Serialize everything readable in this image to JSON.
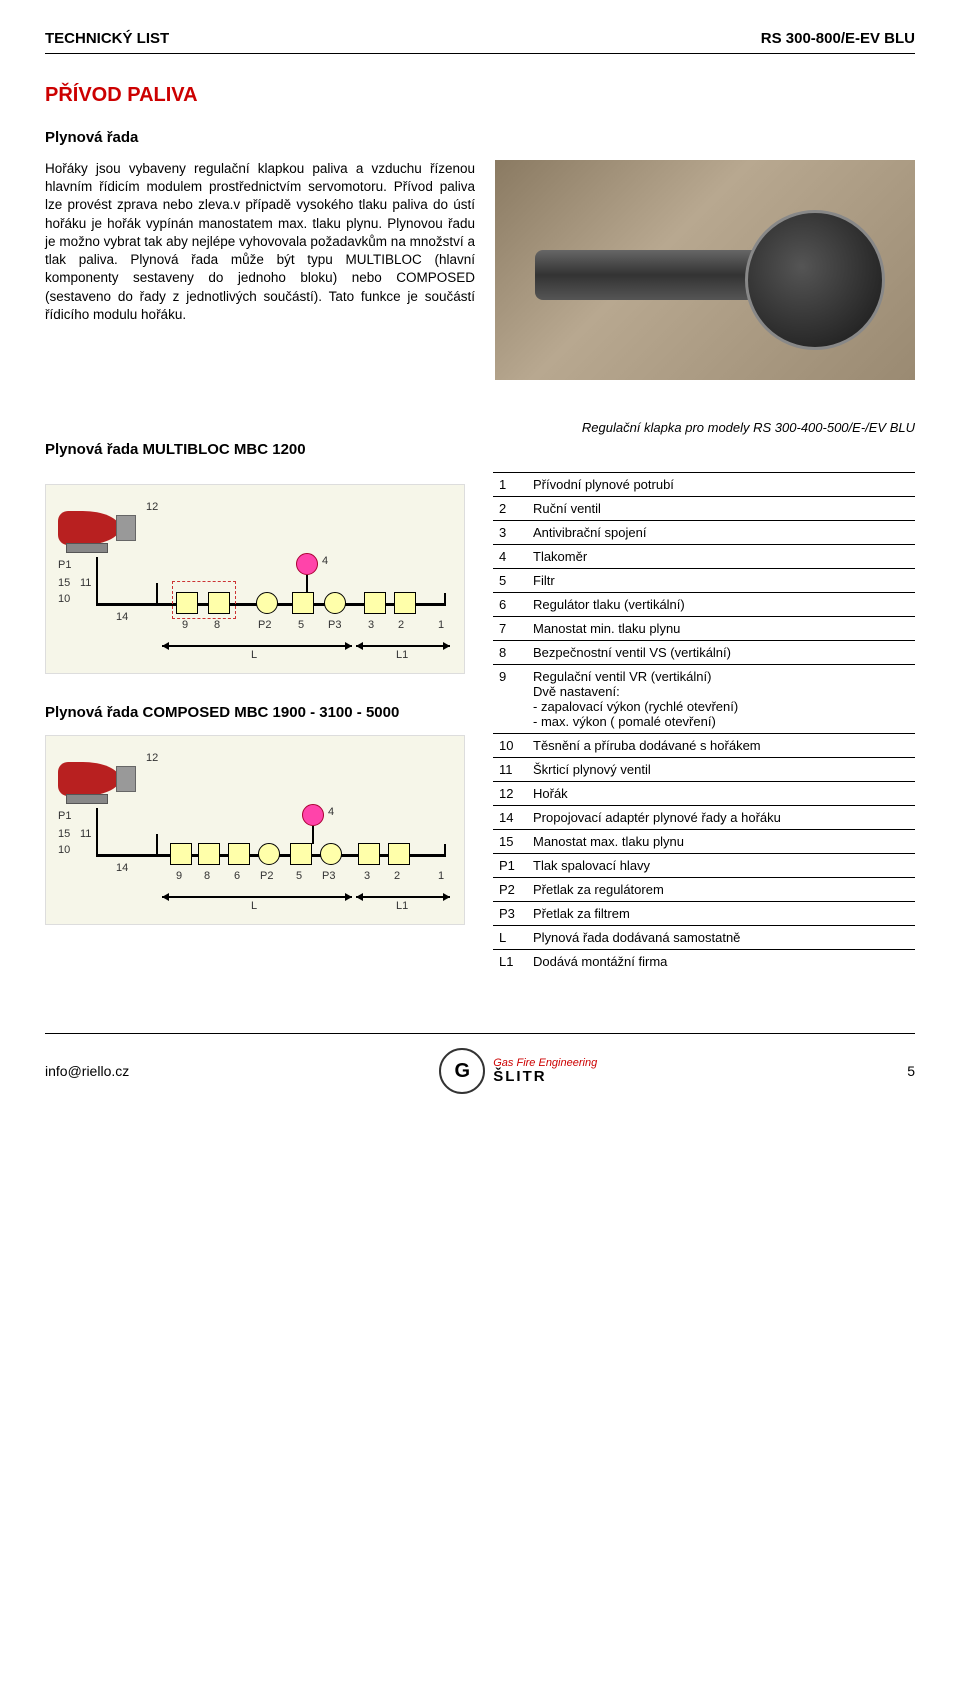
{
  "header": {
    "left": "TECHNICKÝ LIST",
    "right": "RS 300-800/E-EV BLU"
  },
  "section": {
    "title": "PŘÍVOD PALIVA",
    "sub": "Plynová řada",
    "body": "Hořáky jsou vybaveny regulační klapkou paliva a vzduchu řízenou hlavním řídicím modulem prostřednictvím servomotoru. Přívod paliva lze provést zprava nebo zleva.v případě vysokého tlaku paliva do ústí hořáku je hořák vypínán manostatem max. tlaku plynu. Plynovou řadu je možno vybrat tak aby nejlépe vyhovovala požadavkům na množství a tlak paliva. Plynová řada může být typu MULTIBLOC (hlavní komponenty sestaveny do jednoho bloku) nebo COMPOSED (sestaveno do řady z jednotlivých součástí). Tato funkce je součástí řídicího modulu hořáku."
  },
  "caption": "Regulační klapka pro modely RS 300-400-500/E-/EV BLU",
  "labels": {
    "multi": "Plynová řada MULTIBLOC MBC 1200",
    "composed": "Plynová řada COMPOSED MBC 1900 - 3100 - 5000"
  },
  "schematic": {
    "colors": {
      "panel_bg": "#f6f6e9",
      "burner_body": "#b82020",
      "comp_fill": "#ffffaa",
      "line": "#000000",
      "dash": "#cc3333"
    },
    "multi": {
      "top_labels": [
        "12"
      ],
      "left_labels": [
        "P1",
        "15",
        "10",
        "11",
        "14"
      ],
      "bottom_labels": [
        "9",
        "8",
        "P2",
        "5",
        "P3",
        "3",
        "2",
        "1"
      ],
      "accent_label": "4",
      "dims": [
        "L",
        "L1"
      ]
    },
    "composed": {
      "top_labels": [
        "12"
      ],
      "left_labels": [
        "P1",
        "15",
        "10",
        "11",
        "14"
      ],
      "bottom_labels": [
        "9",
        "8",
        "6",
        "P2",
        "5",
        "P3",
        "3",
        "2",
        "1"
      ],
      "accent_label": "4",
      "dims": [
        "L",
        "L1"
      ]
    }
  },
  "parts": [
    {
      "n": "1",
      "d": "Přívodní plynové potrubí"
    },
    {
      "n": "2",
      "d": "Ruční ventil"
    },
    {
      "n": "3",
      "d": "Antivibrační spojení"
    },
    {
      "n": "4",
      "d": "Tlakoměr"
    },
    {
      "n": "5",
      "d": "Filtr"
    },
    {
      "n": "6",
      "d": "Regulátor tlaku (vertikální)"
    },
    {
      "n": "7",
      "d": "Manostat min. tlaku plynu"
    },
    {
      "n": "8",
      "d": "Bezpečnostní ventil VS (vertikální)"
    },
    {
      "n": "9",
      "d": "Regulační ventil VR (vertikální)\nDvě nastavení:\n- zapalovací výkon (rychlé otevření)\n- max. výkon ( pomalé otevření)"
    },
    {
      "n": "10",
      "d": "Těsnění a příruba dodávané s hořákem"
    },
    {
      "n": "11",
      "d": "Škrticí plynový ventil"
    },
    {
      "n": "12",
      "d": "Hořák"
    },
    {
      "n": "14",
      "d": "Propojovací adaptér plynové řady a hořáku"
    },
    {
      "n": "15",
      "d": "Manostat max. tlaku plynu"
    },
    {
      "n": "P1",
      "d": "Tlak spalovací hlavy"
    },
    {
      "n": "P2",
      "d": "Přetlak za regulátorem"
    },
    {
      "n": "P3",
      "d": "Přetlak za filtrem"
    },
    {
      "n": "L",
      "d": "Plynová řada dodávaná samostatně"
    },
    {
      "n": "L1",
      "d": "Dodává montážní firma"
    }
  ],
  "footer": {
    "email": "info@riello.cz",
    "page": "5",
    "logo": {
      "glyph": "G",
      "line1": "Gas Fire Engineering",
      "line2": "ŠLITR"
    }
  }
}
